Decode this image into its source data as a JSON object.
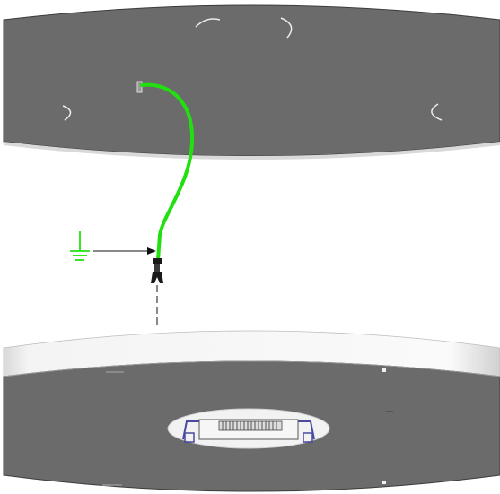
{
  "diagram": {
    "parts": {
      "top_panel": "top-disc-panel",
      "ground_wire": "green-ground-wire",
      "ground_symbol": "ground-symbol",
      "bottom_panel": "bottom-disc-panel",
      "connector": "terminal-connector"
    },
    "colors": {
      "panel_fill": "#6b6b6b",
      "panel_edge": "#3c3c3c",
      "wire": "#22e010",
      "ground_symbol": "#22e010",
      "arrow": "#111111",
      "highlight": "#e6e6e6",
      "cutout_frame": "#4a4aa0"
    },
    "icons": [
      "ground-icon",
      "arrow-right-icon",
      "connector-icon"
    ]
  }
}
